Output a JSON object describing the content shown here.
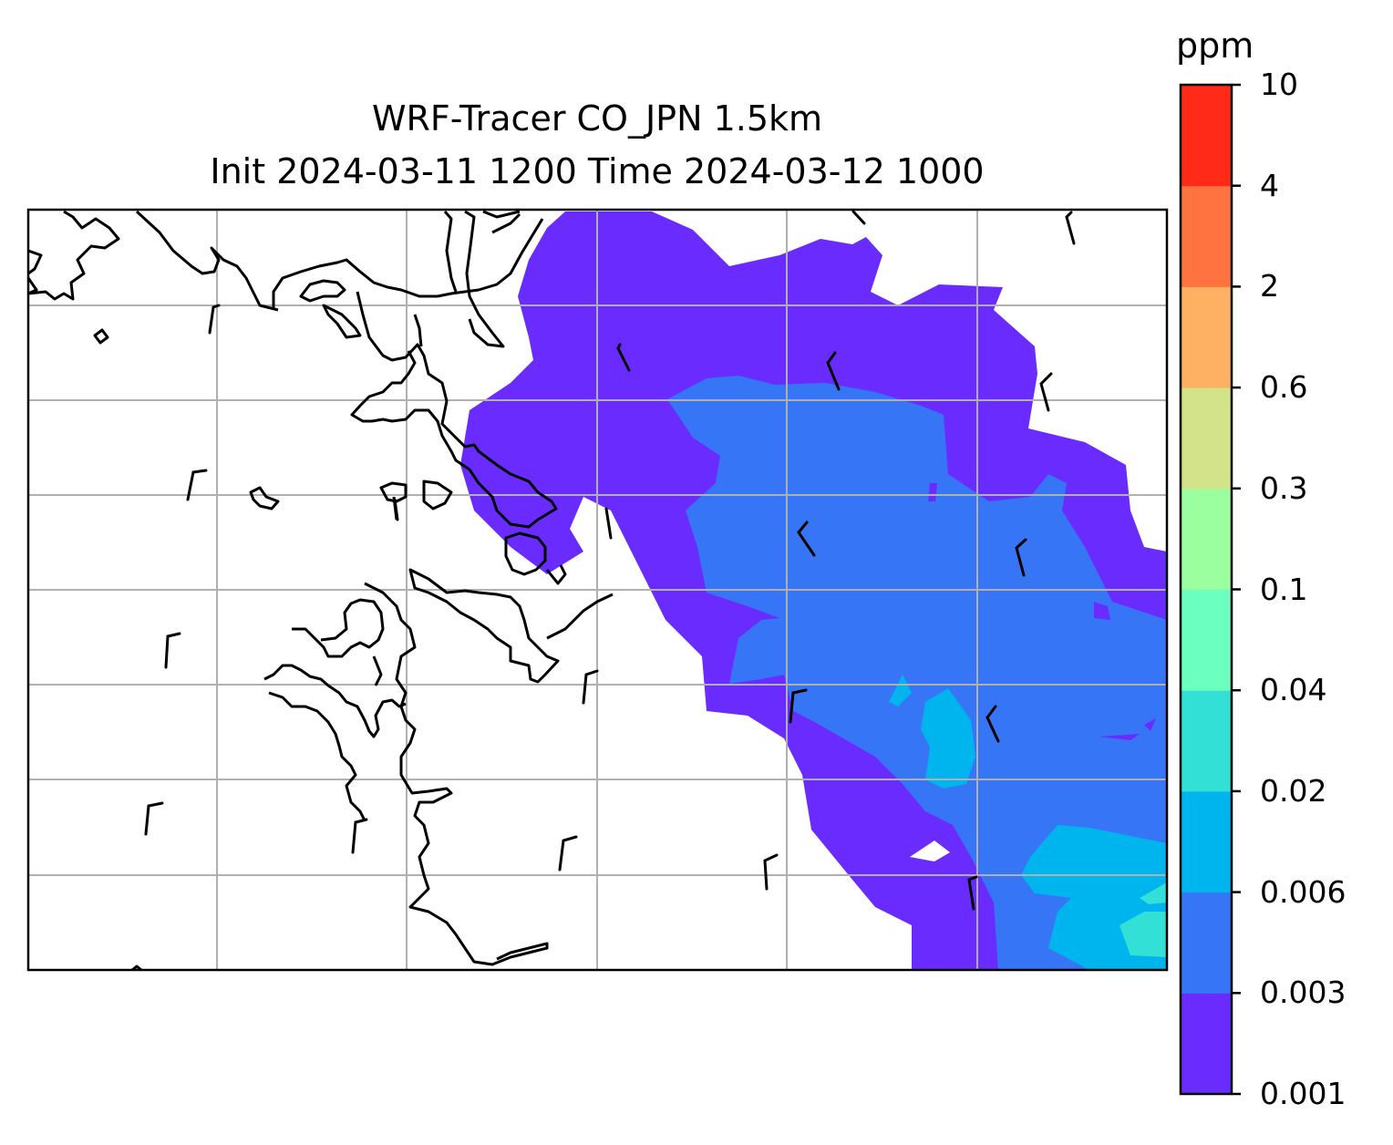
{
  "title": {
    "line1": "WRF-Tracer CO_JPN 1.5km",
    "line2": "Init 2024-03-11 1200 Time 2024-03-12 1000"
  },
  "colorbar": {
    "unit": "ppm",
    "levels": [
      "0.001",
      "0.003",
      "0.006",
      "0.02",
      "0.04",
      "0.1",
      "0.3",
      "0.6",
      "2",
      "4",
      "10"
    ],
    "colors": [
      "#6a2bff",
      "#3676f6",
      "#00b4ee",
      "#33e0d6",
      "#6bffc0",
      "#9cff9f",
      "#d2e38a",
      "#ffb163",
      "#ff7340",
      "#ff2a18"
    ]
  },
  "map": {
    "gridlines": true,
    "colors": {
      "coast": "#000000",
      "grid": "#b0b0b0",
      "barb": "#000000"
    }
  }
}
